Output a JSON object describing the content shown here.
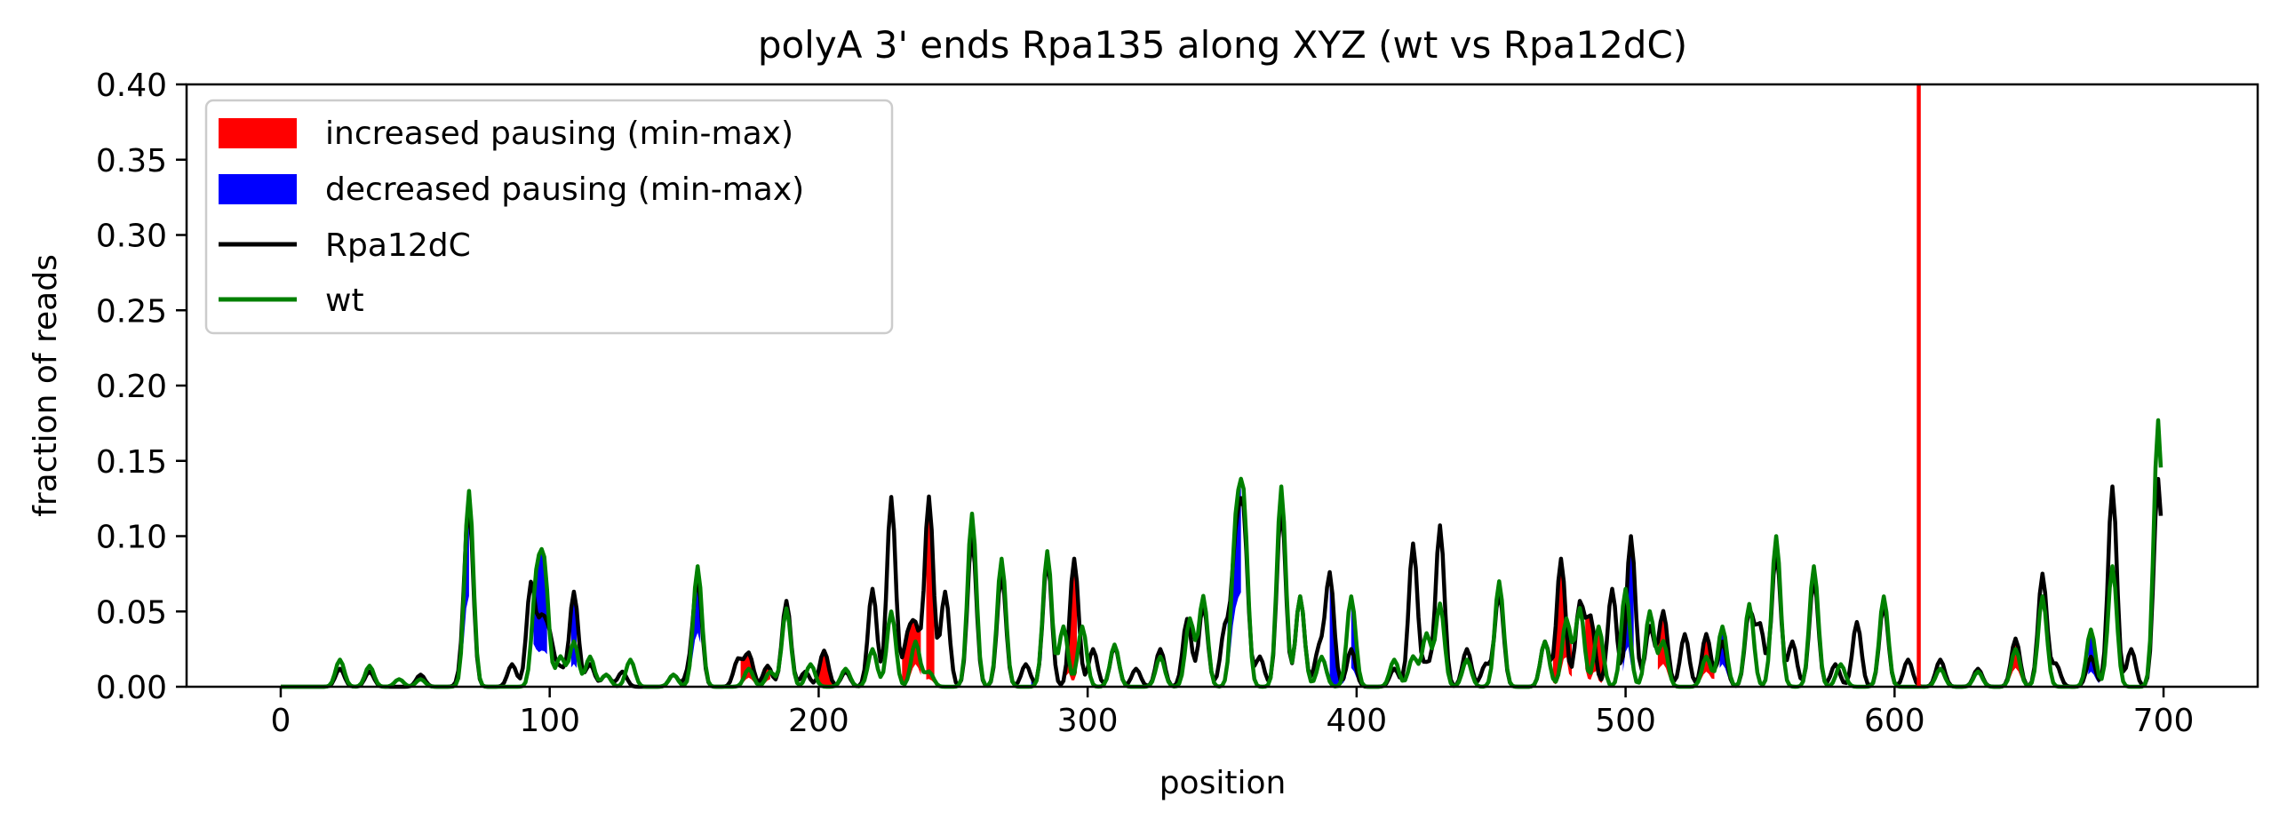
{
  "chart_data": {
    "type": "line",
    "title": "polyA 3' ends Rpa135 along XYZ (wt vs Rpa12dC)",
    "xlabel": "position",
    "ylabel": "fraction of reads",
    "xlim": [
      -35,
      735
    ],
    "ylim": [
      0,
      0.4
    ],
    "xticks": [
      0,
      100,
      200,
      300,
      400,
      500,
      600,
      700
    ],
    "yticks": [
      0.0,
      0.05,
      0.1,
      0.15,
      0.2,
      0.25,
      0.3,
      0.35,
      0.4
    ],
    "xtick_labels": [
      "0",
      "100",
      "200",
      "300",
      "400",
      "500",
      "600",
      "700"
    ],
    "ytick_labels": [
      "0.00",
      "0.05",
      "0.10",
      "0.15",
      "0.20",
      "0.25",
      "0.30",
      "0.35",
      "0.40"
    ],
    "grid": false,
    "legend_position": "upper-left",
    "legend": [
      {
        "label": "increased pausing (min-max)",
        "kind": "patch",
        "color": "#ff0000"
      },
      {
        "label": "decreased pausing (min-max)",
        "kind": "patch",
        "color": "#0000ff"
      },
      {
        "label": "Rpa12dC",
        "kind": "line",
        "color": "#000000"
      },
      {
        "label": "wt",
        "kind": "line",
        "color": "#008000"
      }
    ],
    "vline": {
      "x": 609,
      "color": "#ff0000"
    },
    "series": [
      {
        "name": "Rpa12dC",
        "color": "#000000",
        "peaks": [
          [
            22,
            0.012
          ],
          [
            33,
            0.01
          ],
          [
            52,
            0.008
          ],
          [
            68,
            0.012
          ],
          [
            70,
            0.115
          ],
          [
            86,
            0.015
          ],
          [
            93,
            0.068
          ],
          [
            97,
            0.04
          ],
          [
            100,
            0.03
          ],
          [
            104,
            0.012
          ],
          [
            109,
            0.063
          ],
          [
            115,
            0.015
          ],
          [
            121,
            0.008
          ],
          [
            127,
            0.01
          ],
          [
            146,
            0.008
          ],
          [
            152,
            0.01
          ],
          [
            155,
            0.07
          ],
          [
            170,
            0.018
          ],
          [
            174,
            0.022
          ],
          [
            181,
            0.014
          ],
          [
            188,
            0.057
          ],
          [
            195,
            0.01
          ],
          [
            202,
            0.024
          ],
          [
            210,
            0.01
          ],
          [
            220,
            0.065
          ],
          [
            227,
            0.126
          ],
          [
            233,
            0.03
          ],
          [
            236,
            0.037
          ],
          [
            241,
            0.126
          ],
          [
            247,
            0.063
          ],
          [
            257,
            0.1
          ],
          [
            268,
            0.075
          ],
          [
            277,
            0.015
          ],
          [
            285,
            0.085
          ],
          [
            295,
            0.085
          ],
          [
            302,
            0.025
          ],
          [
            310,
            0.027
          ],
          [
            318,
            0.012
          ],
          [
            327,
            0.025
          ],
          [
            337,
            0.045
          ],
          [
            343,
            0.055
          ],
          [
            351,
            0.038
          ],
          [
            355,
            0.085
          ],
          [
            358,
            0.105
          ],
          [
            364,
            0.02
          ],
          [
            372,
            0.12
          ],
          [
            379,
            0.06
          ],
          [
            386,
            0.025
          ],
          [
            390,
            0.075
          ],
          [
            398,
            0.025
          ],
          [
            414,
            0.012
          ],
          [
            421,
            0.095
          ],
          [
            426,
            0.015
          ],
          [
            431,
            0.107
          ],
          [
            441,
            0.025
          ],
          [
            448,
            0.015
          ],
          [
            453,
            0.063
          ],
          [
            470,
            0.03
          ],
          [
            476,
            0.085
          ],
          [
            483,
            0.055
          ],
          [
            487,
            0.045
          ],
          [
            495,
            0.065
          ],
          [
            502,
            0.1
          ],
          [
            509,
            0.04
          ],
          [
            514,
            0.05
          ],
          [
            522,
            0.035
          ],
          [
            530,
            0.035
          ],
          [
            536,
            0.03
          ],
          [
            546,
            0.05
          ],
          [
            550,
            0.04
          ],
          [
            556,
            0.09
          ],
          [
            562,
            0.03
          ],
          [
            570,
            0.072
          ],
          [
            578,
            0.015
          ],
          [
            586,
            0.043
          ],
          [
            596,
            0.055
          ],
          [
            605,
            0.018
          ],
          [
            617,
            0.018
          ],
          [
            631,
            0.012
          ],
          [
            645,
            0.032
          ],
          [
            655,
            0.075
          ],
          [
            660,
            0.015
          ],
          [
            673,
            0.02
          ],
          [
            681,
            0.133
          ],
          [
            688,
            0.025
          ],
          [
            698,
            0.138
          ]
        ]
      },
      {
        "name": "wt",
        "color": "#008000",
        "peaks": [
          [
            22,
            0.018
          ],
          [
            33,
            0.014
          ],
          [
            44,
            0.005
          ],
          [
            52,
            0.005
          ],
          [
            70,
            0.13
          ],
          [
            95,
            0.065
          ],
          [
            98,
            0.075
          ],
          [
            104,
            0.02
          ],
          [
            109,
            0.03
          ],
          [
            115,
            0.02
          ],
          [
            121,
            0.008
          ],
          [
            130,
            0.018
          ],
          [
            146,
            0.008
          ],
          [
            155,
            0.08
          ],
          [
            174,
            0.012
          ],
          [
            182,
            0.01
          ],
          [
            188,
            0.052
          ],
          [
            197,
            0.015
          ],
          [
            210,
            0.012
          ],
          [
            220,
            0.025
          ],
          [
            227,
            0.05
          ],
          [
            236,
            0.03
          ],
          [
            241,
            0.01
          ],
          [
            257,
            0.115
          ],
          [
            268,
            0.085
          ],
          [
            285,
            0.09
          ],
          [
            291,
            0.04
          ],
          [
            298,
            0.04
          ],
          [
            310,
            0.028
          ],
          [
            327,
            0.02
          ],
          [
            338,
            0.045
          ],
          [
            343,
            0.06
          ],
          [
            355,
            0.095
          ],
          [
            358,
            0.115
          ],
          [
            372,
            0.133
          ],
          [
            379,
            0.06
          ],
          [
            387,
            0.02
          ],
          [
            398,
            0.06
          ],
          [
            414,
            0.018
          ],
          [
            421,
            0.02
          ],
          [
            426,
            0.035
          ],
          [
            431,
            0.055
          ],
          [
            441,
            0.018
          ],
          [
            453,
            0.07
          ],
          [
            470,
            0.03
          ],
          [
            478,
            0.045
          ],
          [
            483,
            0.052
          ],
          [
            490,
            0.04
          ],
          [
            500,
            0.065
          ],
          [
            509,
            0.05
          ],
          [
            514,
            0.03
          ],
          [
            530,
            0.02
          ],
          [
            536,
            0.04
          ],
          [
            546,
            0.055
          ],
          [
            556,
            0.1
          ],
          [
            570,
            0.08
          ],
          [
            580,
            0.015
          ],
          [
            596,
            0.06
          ],
          [
            617,
            0.012
          ],
          [
            631,
            0.01
          ],
          [
            645,
            0.025
          ],
          [
            655,
            0.06
          ],
          [
            673,
            0.038
          ],
          [
            681,
            0.08
          ],
          [
            698,
            0.177
          ]
        ]
      }
    ],
    "increased_pausing_regions": [
      [
        171,
        182
      ],
      [
        200,
        205
      ],
      [
        231,
        238
      ],
      [
        240,
        243
      ],
      [
        292,
        296
      ],
      [
        473,
        480
      ],
      [
        485,
        492
      ],
      [
        512,
        517
      ],
      [
        527,
        533
      ],
      [
        642,
        648
      ]
    ],
    "decreased_pausing_regions": [
      [
        66,
        70
      ],
      [
        94,
        99
      ],
      [
        108,
        110
      ],
      [
        152,
        156
      ],
      [
        279,
        283
      ],
      [
        352,
        357
      ],
      [
        390,
        396
      ],
      [
        398,
        402
      ],
      [
        499,
        503
      ],
      [
        535,
        539
      ],
      [
        620,
        624
      ],
      [
        672,
        676
      ]
    ]
  }
}
